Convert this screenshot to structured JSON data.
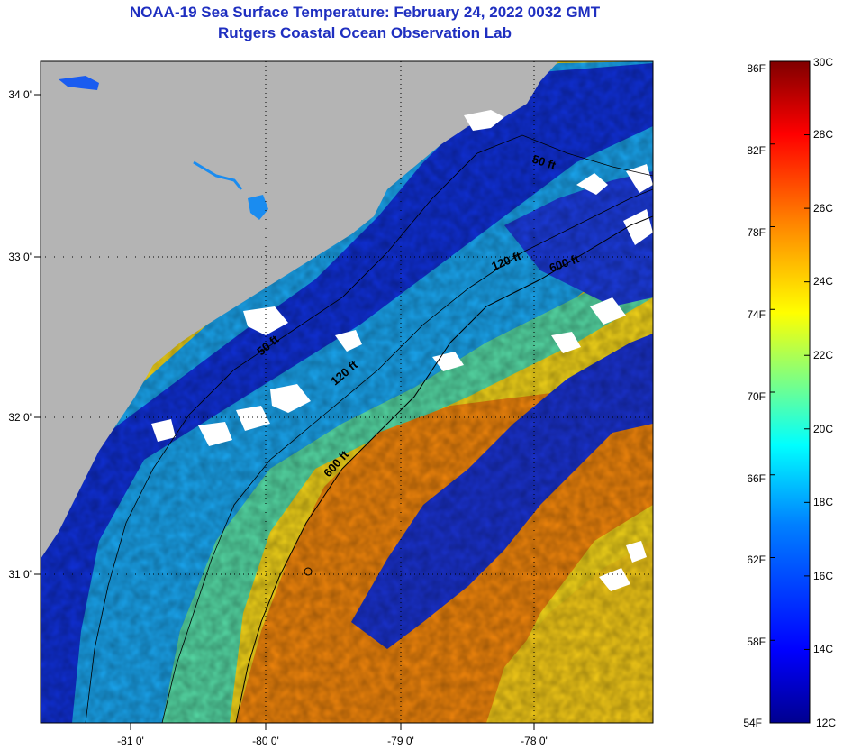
{
  "title": {
    "line1": "NOAA-19 Sea Surface Temperature:  February 24, 2022 0032 GMT",
    "line2": "Rutgers Coastal Ocean Observation Lab"
  },
  "map": {
    "lat_labels": [
      "34 0'",
      "33 0'",
      "32 0'",
      "31 0'"
    ],
    "lon_labels": [
      "-81 0'",
      "-80 0'",
      "-79 0'",
      "-78 0'"
    ],
    "contour_labels": [
      "50 ft",
      "120 ft",
      "600 ft",
      "50 ft",
      "120 ft",
      "600 ft"
    ],
    "colors": {
      "land": "#b4b4b4",
      "cloud": "#ffffff",
      "cold": "#0a1ecc",
      "cool": "#1aa6f0",
      "mid": "#35e0d8",
      "warm": "#f0e020",
      "hot": "#f0860c"
    }
  },
  "colorbar": {
    "fahrenheit_labels": [
      "86F",
      "82F",
      "78F",
      "74F",
      "70F",
      "66F",
      "62F",
      "58F",
      "54F"
    ],
    "celsius_labels": [
      "30C",
      "28C",
      "26C",
      "24C",
      "22C",
      "20C",
      "18C",
      "16C",
      "14C",
      "12C"
    ],
    "range_c": [
      12,
      30
    ],
    "stops": [
      "#00008f",
      "#0000ff",
      "#0080ff",
      "#00ffff",
      "#80ff80",
      "#ffff00",
      "#ff8000",
      "#ff0000",
      "#800000"
    ]
  }
}
